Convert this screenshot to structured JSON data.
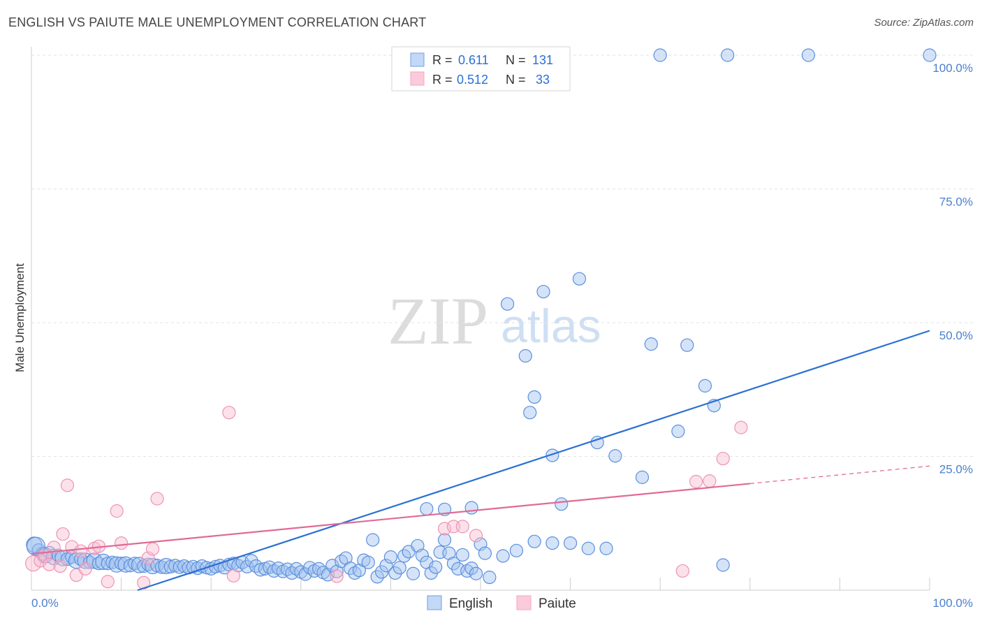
{
  "header": {
    "title": "ENGLISH VS PAIUTE MALE UNEMPLOYMENT CORRELATION CHART",
    "source": "Source: ZipAtlas.com"
  },
  "watermark": {
    "zip": "ZIP",
    "atlas": "atlas"
  },
  "legend": {
    "english": {
      "r_label": "R =",
      "r_value": "0.611",
      "n_label": "N =",
      "n_value": "131"
    },
    "paiute": {
      "r_label": "R =",
      "r_value": "0.512",
      "n_label": "N =",
      "n_value": "33"
    }
  },
  "chart_data": {
    "type": "scatter",
    "title": "ENGLISH VS PAIUTE MALE UNEMPLOYMENT CORRELATION CHART",
    "xlabel": "",
    "ylabel": "Male Unemployment",
    "xlim": [
      0,
      100
    ],
    "ylim": [
      0,
      100
    ],
    "x_tick_labels": [
      "0.0%",
      "100.0%"
    ],
    "y_ticks": [
      25,
      50,
      75,
      100
    ],
    "y_tick_labels": [
      "25.0%",
      "50.0%",
      "75.0%",
      "100.0%"
    ],
    "grid": true,
    "legend_position": "top-center",
    "colors": {
      "english": "#6fa0e8",
      "paiute": "#f4a6bf",
      "english_line": "#2a6fd4",
      "paiute_line": "#e06a96"
    },
    "series": [
      {
        "name": "English",
        "r": 0.611,
        "n": 131,
        "trend": {
          "x": [
            0,
            100
          ],
          "y": [
            -6.5,
            48.5
          ],
          "solid_until": 100
        },
        "points": [
          [
            0.3,
            8.5,
            1
          ],
          [
            0.8,
            7.5,
            0
          ],
          [
            1.2,
            6.8,
            0
          ],
          [
            1.5,
            6.5,
            1
          ],
          [
            2,
            7,
            0
          ],
          [
            2.5,
            6.2,
            1
          ],
          [
            3,
            6.5,
            0
          ],
          [
            3.5,
            6,
            1
          ],
          [
            4,
            5.8,
            0
          ],
          [
            4.5,
            6.2,
            0
          ],
          [
            5,
            5.5,
            1
          ],
          [
            5.5,
            5.8,
            0
          ],
          [
            6,
            5.5,
            1
          ],
          [
            6.5,
            5.2,
            0
          ],
          [
            7,
            5.5,
            1
          ],
          [
            7.5,
            5,
            0
          ],
          [
            8,
            5.3,
            1
          ],
          [
            8.5,
            5,
            0
          ],
          [
            9,
            5.2,
            0
          ],
          [
            9.5,
            4.8,
            1
          ],
          [
            10,
            5,
            0
          ],
          [
            10.5,
            4.8,
            1
          ],
          [
            11,
            4.6,
            0
          ],
          [
            11.5,
            5,
            0
          ],
          [
            12,
            4.7,
            1
          ],
          [
            12.5,
            4.5,
            0
          ],
          [
            13,
            4.8,
            0
          ],
          [
            13.5,
            4.5,
            1
          ],
          [
            14,
            4.6,
            0
          ],
          [
            14.5,
            4.3,
            0
          ],
          [
            15,
            4.5,
            1
          ],
          [
            15.5,
            4.4,
            0
          ],
          [
            16,
            4.6,
            0
          ],
          [
            16.5,
            4.3,
            0
          ],
          [
            17,
            4.5,
            0
          ],
          [
            17.5,
            4.2,
            0
          ],
          [
            18,
            4.4,
            0
          ],
          [
            18.5,
            4.1,
            0
          ],
          [
            19,
            4.5,
            0
          ],
          [
            19.5,
            4.2,
            0
          ],
          [
            20,
            4,
            0
          ],
          [
            20.5,
            4.4,
            0
          ],
          [
            21,
            4.6,
            0
          ],
          [
            21.5,
            4.2,
            0
          ],
          [
            22,
            4.8,
            0
          ],
          [
            22.5,
            5,
            0
          ],
          [
            23,
            4.6,
            0
          ],
          [
            23.5,
            5.2,
            0
          ],
          [
            24,
            4.4,
            0
          ],
          [
            24.5,
            5.5,
            0
          ],
          [
            25,
            4.5,
            0
          ],
          [
            25.5,
            3.8,
            0
          ],
          [
            26,
            4,
            0
          ],
          [
            26.5,
            4.3,
            0
          ],
          [
            27,
            3.6,
            0
          ],
          [
            27.5,
            4.1,
            0
          ],
          [
            28,
            3.5,
            0
          ],
          [
            28.5,
            3.9,
            0
          ],
          [
            29,
            3.2,
            0
          ],
          [
            29.5,
            4,
            0
          ],
          [
            30,
            3.4,
            0
          ],
          [
            30.5,
            3,
            0
          ],
          [
            31,
            4.2,
            0
          ],
          [
            31.5,
            3.6,
            0
          ],
          [
            32,
            4,
            0
          ],
          [
            32.5,
            3.3,
            0
          ],
          [
            33,
            2.9,
            0
          ],
          [
            33.5,
            4.6,
            0
          ],
          [
            34,
            3.5,
            0
          ],
          [
            34.5,
            5.4,
            0
          ],
          [
            35,
            6,
            0
          ],
          [
            35.5,
            4.1,
            0
          ],
          [
            36,
            3.2,
            0
          ],
          [
            36.5,
            3.7,
            0
          ],
          [
            37,
            5.6,
            0
          ],
          [
            37.5,
            5.2,
            0
          ],
          [
            38,
            9.4,
            0
          ],
          [
            38.5,
            2.5,
            0
          ],
          [
            39,
            3.4,
            0
          ],
          [
            39.5,
            4.6,
            0
          ],
          [
            40,
            6.2,
            0
          ],
          [
            40.5,
            3.2,
            0
          ],
          [
            41,
            4.2,
            0
          ],
          [
            41.5,
            6.4,
            0
          ],
          [
            42,
            7.2,
            0
          ],
          [
            42.5,
            3.1,
            0
          ],
          [
            43,
            8.3,
            0
          ],
          [
            43.5,
            6.5,
            0
          ],
          [
            44,
            5.2,
            0
          ],
          [
            44.5,
            3.2,
            0
          ],
          [
            45,
            4.3,
            0
          ],
          [
            45.5,
            7.1,
            0
          ],
          [
            46,
            9.4,
            0
          ],
          [
            46.5,
            6.9,
            0
          ],
          [
            47,
            5,
            0
          ],
          [
            47.5,
            4,
            0
          ],
          [
            48,
            6.6,
            0
          ],
          [
            48.5,
            3.6,
            0
          ],
          [
            49,
            4.1,
            0
          ],
          [
            49.5,
            3.1,
            0
          ],
          [
            50,
            8.6,
            0
          ],
          [
            50.5,
            6.9,
            0
          ],
          [
            51,
            2.4,
            0
          ],
          [
            52.5,
            6.4,
            0
          ],
          [
            54,
            7.4,
            0
          ],
          [
            56,
            9.1,
            0
          ],
          [
            58,
            8.8,
            0
          ],
          [
            60,
            8.8,
            0
          ],
          [
            62,
            7.8,
            0
          ],
          [
            64,
            7.8,
            0
          ],
          [
            77,
            4.7,
            0
          ],
          [
            44,
            15.2,
            0
          ],
          [
            46,
            15.1,
            0
          ],
          [
            49,
            15.4,
            0
          ],
          [
            53,
            53.5,
            0
          ],
          [
            55,
            43.8,
            0
          ],
          [
            56,
            36.1,
            0
          ],
          [
            55.5,
            33.2,
            0
          ],
          [
            57,
            55.8,
            0
          ],
          [
            58,
            25.2,
            0
          ],
          [
            59,
            16.1,
            0
          ],
          [
            61,
            58.2,
            0
          ],
          [
            63,
            27.6,
            0
          ],
          [
            65,
            25.1,
            0
          ],
          [
            68,
            21.1,
            0
          ],
          [
            69,
            46,
            0
          ],
          [
            72,
            29.7,
            0
          ],
          [
            73,
            45.8,
            0
          ],
          [
            75,
            38.2,
            0
          ],
          [
            76,
            34.5,
            0
          ],
          [
            70,
            100,
            0
          ],
          [
            77.5,
            100,
            0
          ],
          [
            86.5,
            100,
            0
          ],
          [
            100,
            100,
            0
          ],
          [
            0.5,
            8.2,
            2
          ]
        ]
      },
      {
        "name": "Paiute",
        "r": 0.512,
        "n": 33,
        "trend": {
          "x": [
            0,
            100
          ],
          "y": [
            6.8,
            23.2
          ],
          "solid_until": 80
        },
        "points": [
          [
            0.2,
            5,
            1
          ],
          [
            1,
            5.5,
            0
          ],
          [
            1.5,
            6.5,
            0
          ],
          [
            2,
            4.8,
            0
          ],
          [
            2.5,
            8,
            0
          ],
          [
            3.5,
            10.5,
            0
          ],
          [
            4,
            19.6,
            0
          ],
          [
            4.5,
            8.1,
            0
          ],
          [
            5,
            2.8,
            0
          ],
          [
            5.5,
            7.3,
            0
          ],
          [
            6,
            4,
            0
          ],
          [
            7,
            7.8,
            0
          ],
          [
            7.5,
            8.2,
            0
          ],
          [
            8.5,
            1.6,
            0
          ],
          [
            9.5,
            14.8,
            0
          ],
          [
            10,
            8.8,
            0
          ],
          [
            12.5,
            1.4,
            0
          ],
          [
            13,
            6,
            0
          ],
          [
            13.5,
            7.7,
            0
          ],
          [
            14,
            17.1,
            0
          ],
          [
            22,
            33.2,
            0
          ],
          [
            22.5,
            2.7,
            0
          ],
          [
            34,
            2.6,
            0
          ],
          [
            46,
            11.5,
            0
          ],
          [
            47,
            11.9,
            0
          ],
          [
            48,
            11.9,
            0
          ],
          [
            49.5,
            10.2,
            0
          ],
          [
            72.5,
            3.6,
            0
          ],
          [
            74,
            20.3,
            0
          ],
          [
            75.5,
            20.4,
            0
          ],
          [
            77,
            24.6,
            0
          ],
          [
            79,
            30.4,
            0
          ],
          [
            3.2,
            4.5,
            0
          ]
        ]
      }
    ]
  },
  "bottom_legend": {
    "english": "English",
    "paiute": "Paiute"
  }
}
